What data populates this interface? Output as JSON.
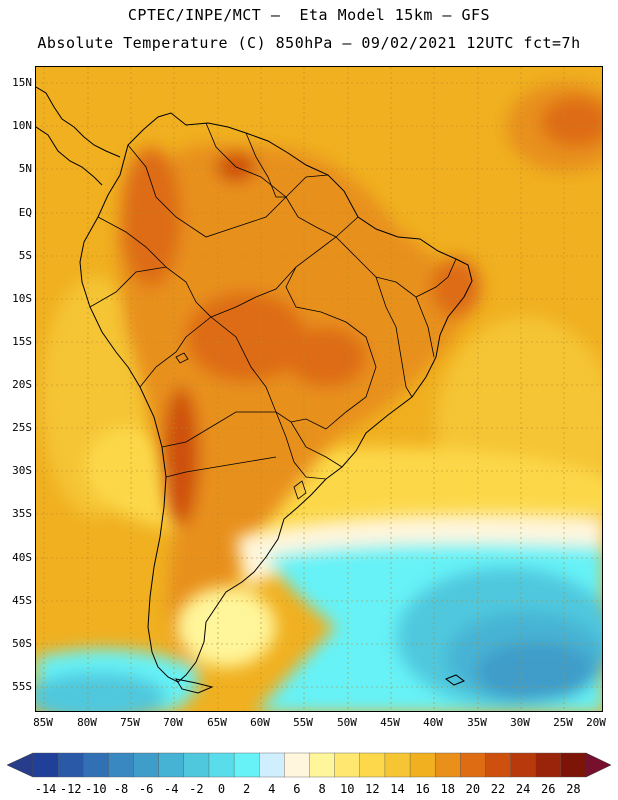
{
  "header": {
    "title_line1": "CPTEC/INPE/MCT –  Eta Model 15km – GFS",
    "title_line2": "Absolute Temperature (C) 850hPa – 09/02/2021 12UTC fct=7h"
  },
  "map": {
    "lat_labels": [
      "15N",
      "10N",
      "5N",
      "EQ",
      "5S",
      "10S",
      "15S",
      "20S",
      "25S",
      "30S",
      "35S",
      "40S",
      "45S",
      "50S",
      "55S"
    ],
    "lon_labels": [
      "85W",
      "80W",
      "75W",
      "70W",
      "65W",
      "60W",
      "55W",
      "50W",
      "45W",
      "40W",
      "35W",
      "30W",
      "25W",
      "20W"
    ],
    "lat_range": [
      -58,
      16.5
    ],
    "lon_range": [
      -86,
      -19.5
    ]
  },
  "colorbar": {
    "labels": [
      "-14",
      "-12",
      "-10",
      "-8",
      "-6",
      "-4",
      "-2",
      "0",
      "2",
      "4",
      "6",
      "8",
      "10",
      "12",
      "14",
      "16",
      "18",
      "20",
      "22",
      "24",
      "26",
      "28"
    ],
    "colors": [
      "#1f3f99",
      "#2a59a8",
      "#3270b5",
      "#3a88c2",
      "#3f9dc9",
      "#47b3d4",
      "#4fc8de",
      "#5addea",
      "#66f2f7",
      "#cfefff",
      "#fff6dd",
      "#fff59a",
      "#ffe770",
      "#fcd84a",
      "#f5c534",
      "#f0b020",
      "#e8901a",
      "#de6c12",
      "#ce500e",
      "#b83a0c",
      "#9a2409",
      "#7c1407"
    ],
    "under_color": "#283c8c",
    "over_color": "#78102d"
  }
}
